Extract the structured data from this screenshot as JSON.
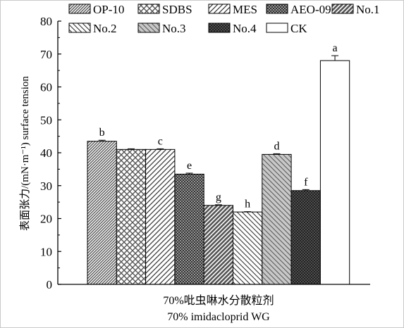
{
  "chart_data": {
    "type": "bar",
    "xlabel_lines": [
      "70%吡虫啉水分散粒剂",
      "70% imidacloprid WG"
    ],
    "ylabel": "表面张力/(mN·m⁻¹) surface tension",
    "ylim": [
      0,
      80
    ],
    "yticks": [
      "0",
      "10",
      "20",
      "30",
      "40",
      "50",
      "60",
      "70",
      "80"
    ],
    "grid": false,
    "legend_position": "top",
    "series": [
      {
        "name": "OP-10",
        "value": 43.5,
        "error": 0.3,
        "label": "b",
        "pattern": "diag-fine",
        "color": "#555555"
      },
      {
        "name": "SDBS",
        "value": 41.0,
        "error": 0.2,
        "label": "",
        "pattern": "crosshatch",
        "color": "#555555"
      },
      {
        "name": "MES",
        "value": 41.0,
        "error": 0.2,
        "label": "c",
        "pattern": "diag-wide",
        "color": "#333333"
      },
      {
        "name": "AEO-09",
        "value": 33.5,
        "error": 0.3,
        "label": "e",
        "pattern": "dense-check",
        "color": "#333333"
      },
      {
        "name": "No.1",
        "value": 24.0,
        "error": 0.2,
        "label": "g",
        "pattern": "diag-dark",
        "color": "#555555"
      },
      {
        "name": "No.2",
        "value": 22.0,
        "error": 0.1,
        "label": "h",
        "pattern": "backdiag",
        "color": "#333333"
      },
      {
        "name": "No.3",
        "value": 39.5,
        "error": 0.2,
        "label": "d",
        "pattern": "diag-gray",
        "color": "#888888"
      },
      {
        "name": "No.4",
        "value": 28.5,
        "error": 0.3,
        "label": "f",
        "pattern": "dense-dark",
        "color": "#555555"
      },
      {
        "name": "CK",
        "value": 68.0,
        "error": 1.5,
        "label": "a",
        "pattern": "solid-white",
        "color": "#ffffff"
      }
    ]
  }
}
